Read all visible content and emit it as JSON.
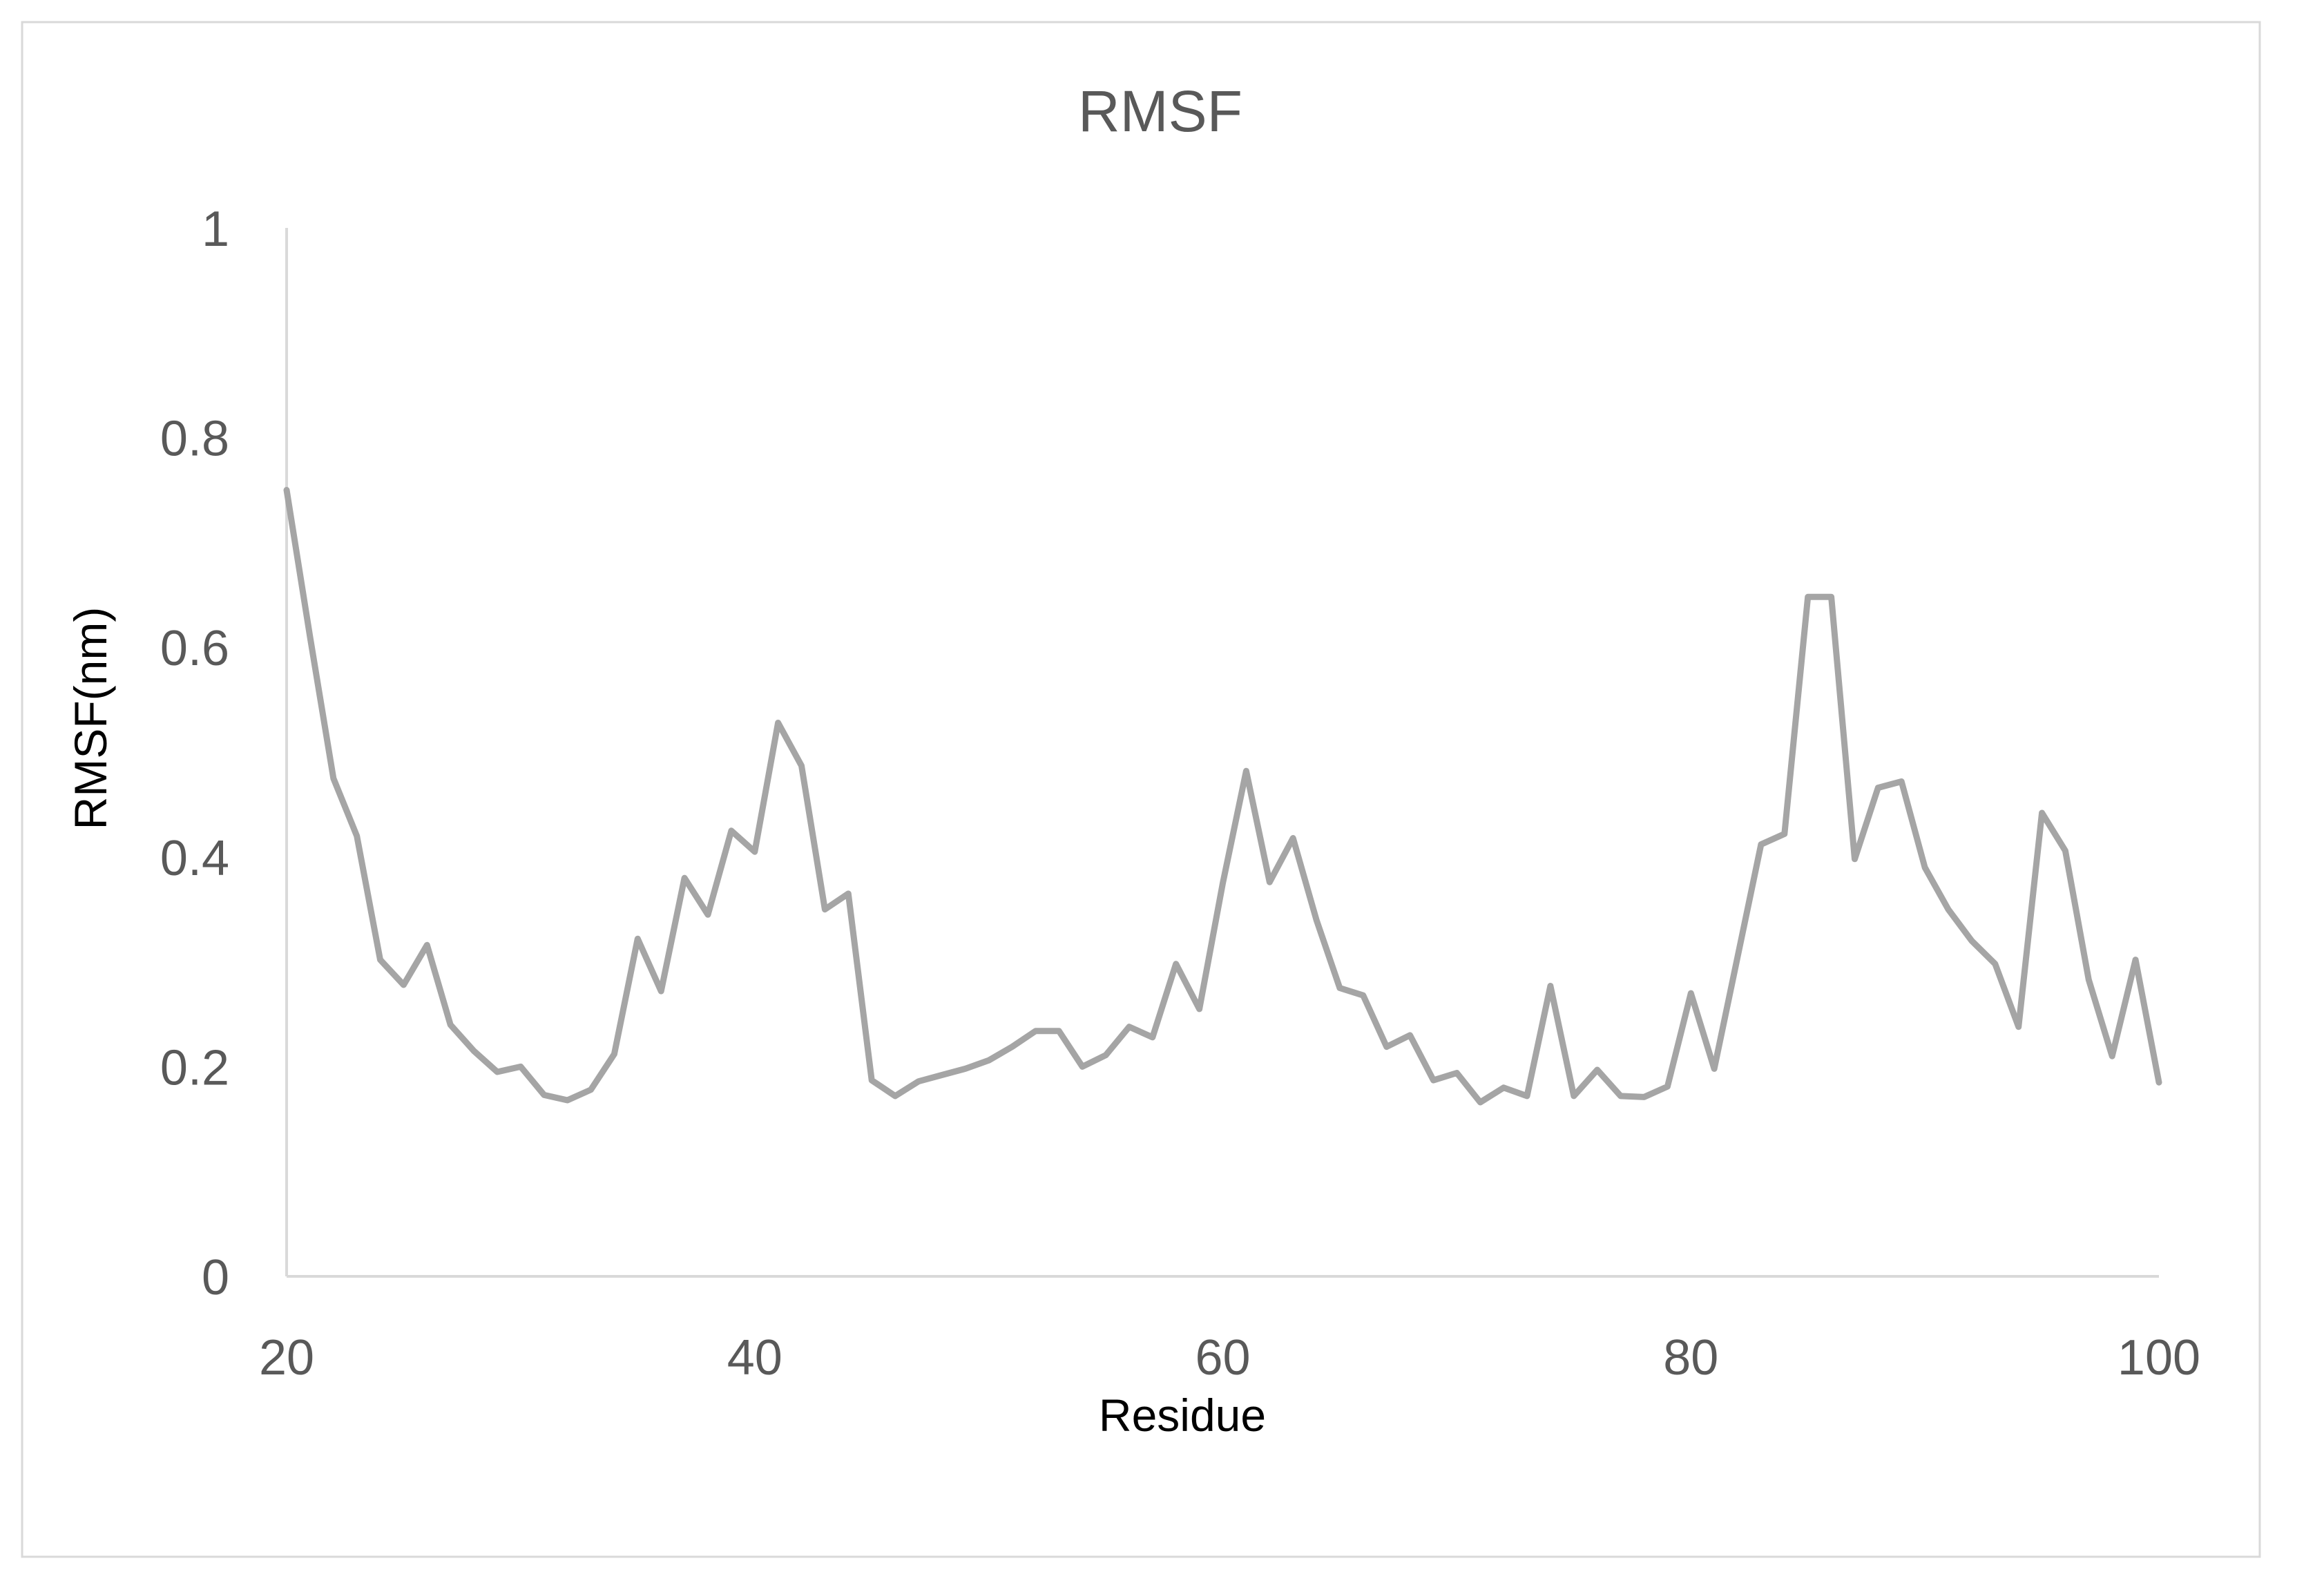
{
  "chart_data": {
    "type": "line",
    "title": "RMSF",
    "xlabel": "Residue",
    "ylabel": "RMSF(nm)",
    "xlim": [
      20,
      100
    ],
    "ylim": [
      0,
      1
    ],
    "x_ticks": [
      20,
      40,
      60,
      80,
      100
    ],
    "y_ticks": [
      0,
      0.2,
      0.4,
      0.6,
      0.8,
      1
    ],
    "y_tick_labels": [
      "0",
      "0.2",
      "0.4",
      "0.6",
      "0.8",
      "1"
    ],
    "x_tick_labels": [
      "20",
      "40",
      "60",
      "80",
      "100"
    ],
    "grid": false,
    "legend": "none",
    "series": [
      {
        "color": "#a5a5a5",
        "x": [
          20,
          21,
          22,
          23,
          24,
          25,
          26,
          27,
          28,
          29,
          30,
          31,
          32,
          33,
          34,
          35,
          36,
          37,
          38,
          39,
          40,
          41,
          42,
          43,
          44,
          45,
          46,
          47,
          48,
          49,
          50,
          51,
          52,
          53,
          54,
          55,
          56,
          57,
          58,
          59,
          60,
          61,
          62,
          63,
          64,
          65,
          66,
          67,
          68,
          69,
          70,
          71,
          72,
          73,
          74,
          75,
          76,
          77,
          78,
          79,
          80,
          81,
          82,
          83,
          84,
          85,
          86,
          87,
          88,
          89,
          90,
          91,
          92,
          93,
          94,
          95,
          96,
          97,
          98,
          99,
          100
        ],
        "values": [
          0.75,
          0.61,
          0.475,
          0.42,
          0.302,
          0.278,
          0.316,
          0.24,
          0.215,
          0.195,
          0.2,
          0.173,
          0.168,
          0.178,
          0.212,
          0.322,
          0.272,
          0.38,
          0.345,
          0.425,
          0.405,
          0.528,
          0.487,
          0.35,
          0.365,
          0.187,
          0.172,
          0.186,
          0.192,
          0.198,
          0.206,
          0.219,
          0.234,
          0.234,
          0.2,
          0.211,
          0.238,
          0.228,
          0.298,
          0.255,
          0.375,
          0.482,
          0.376,
          0.418,
          0.34,
          0.275,
          0.268,
          0.219,
          0.23,
          0.187,
          0.194,
          0.166,
          0.18,
          0.172,
          0.277,
          0.172,
          0.197,
          0.172,
          0.171,
          0.181,
          0.27,
          0.198,
          0.305,
          0.412,
          0.422,
          0.648,
          0.648,
          0.398,
          0.466,
          0.472,
          0.39,
          0.35,
          0.32,
          0.298,
          0.238,
          0.442,
          0.406,
          0.283,
          0.21,
          0.302,
          0.185
        ]
      }
    ]
  },
  "colors": {
    "axis": "#d9d9d9",
    "text": "#595959",
    "frame": "#d9d9d9",
    "line": "#a5a5a5"
  }
}
